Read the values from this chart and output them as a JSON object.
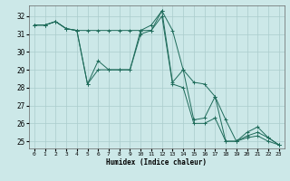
{
  "xlabel": "Humidex (Indice chaleur)",
  "ylabel": "",
  "bg_color": "#cce8e8",
  "grid_color": "#aacccc",
  "line_color": "#1e6b5a",
  "x_ticks": [
    0,
    1,
    2,
    3,
    4,
    5,
    6,
    7,
    8,
    9,
    10,
    11,
    12,
    13,
    14,
    15,
    16,
    17,
    18,
    19,
    20,
    21,
    22,
    23
  ],
  "y_ticks": [
    25,
    26,
    27,
    28,
    29,
    30,
    31,
    32
  ],
  "ylim": [
    24.6,
    32.6
  ],
  "xlim": [
    -0.5,
    23.5
  ],
  "series": [
    [
      31.5,
      31.5,
      31.7,
      31.3,
      31.2,
      31.2,
      31.2,
      31.2,
      31.2,
      31.2,
      31.2,
      31.2,
      32.3,
      31.2,
      29.0,
      28.3,
      28.2,
      27.5,
      26.2,
      25.0,
      25.3,
      25.5,
      25.2,
      24.8
    ],
    [
      31.5,
      31.5,
      31.7,
      31.3,
      31.2,
      28.2,
      29.5,
      29.0,
      29.0,
      29.0,
      31.2,
      31.5,
      32.3,
      28.3,
      29.0,
      26.2,
      26.3,
      27.5,
      25.0,
      25.0,
      25.5,
      25.8,
      25.2,
      24.8
    ],
    [
      31.5,
      31.5,
      31.7,
      31.3,
      31.2,
      28.2,
      29.0,
      29.0,
      29.0,
      29.0,
      31.0,
      31.2,
      32.0,
      28.2,
      28.0,
      26.0,
      26.0,
      26.3,
      25.0,
      25.0,
      25.2,
      25.3,
      25.0,
      24.8
    ]
  ]
}
